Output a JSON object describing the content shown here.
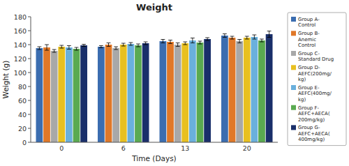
{
  "chart_data": {
    "type": "bar",
    "title": "Weight",
    "xlabel": "Time (Days)",
    "ylabel": "Weight (g)",
    "categories": [
      "0",
      "6",
      "13",
      "20"
    ],
    "series": [
      {
        "name": "Group A-\nControl",
        "color": "#3B6DB0",
        "values": [
          135,
          137,
          145,
          153
        ],
        "errors": [
          2.0,
          1.5,
          2.5,
          2.5
        ]
      },
      {
        "name": "Group B-\nAnemic\nControl",
        "color": "#E07828",
        "values": [
          136,
          140,
          144,
          150
        ],
        "errors": [
          4.0,
          2.5,
          2.5,
          2.0
        ]
      },
      {
        "name": "Group C-\nStandard Drug",
        "color": "#A8A8A8",
        "values": [
          131,
          135,
          140,
          145
        ],
        "errors": [
          2.0,
          2.0,
          2.5,
          2.5
        ]
      },
      {
        "name": "Group D-\nAEFC(200mg/\nkg)",
        "color": "#E8C020",
        "values": [
          137,
          140,
          142,
          150
        ],
        "errors": [
          2.0,
          2.0,
          2.0,
          2.0
        ]
      },
      {
        "name": "Group E-\nAEFC(400mg/\nkg)",
        "color": "#6AB0DC",
        "values": [
          136,
          141,
          146,
          151
        ],
        "errors": [
          2.5,
          2.0,
          3.5,
          3.0
        ]
      },
      {
        "name": "Group F-\nAEFC+AECA(\n200mg/kg)",
        "color": "#5AAA50",
        "values": [
          134,
          139,
          143,
          146
        ],
        "errors": [
          2.0,
          2.0,
          2.0,
          2.0
        ]
      },
      {
        "name": "Group G-\nAEFC+AECA(\n400mg/kg)",
        "color": "#1A2F6A",
        "values": [
          139,
          142,
          148,
          155
        ],
        "errors": [
          1.5,
          2.0,
          2.0,
          4.5
        ]
      }
    ],
    "ylim": [
      0,
      180
    ],
    "yticks": [
      0,
      20,
      40,
      60,
      80,
      100,
      120,
      140,
      160,
      180
    ],
    "grid": false,
    "legend": "right"
  }
}
